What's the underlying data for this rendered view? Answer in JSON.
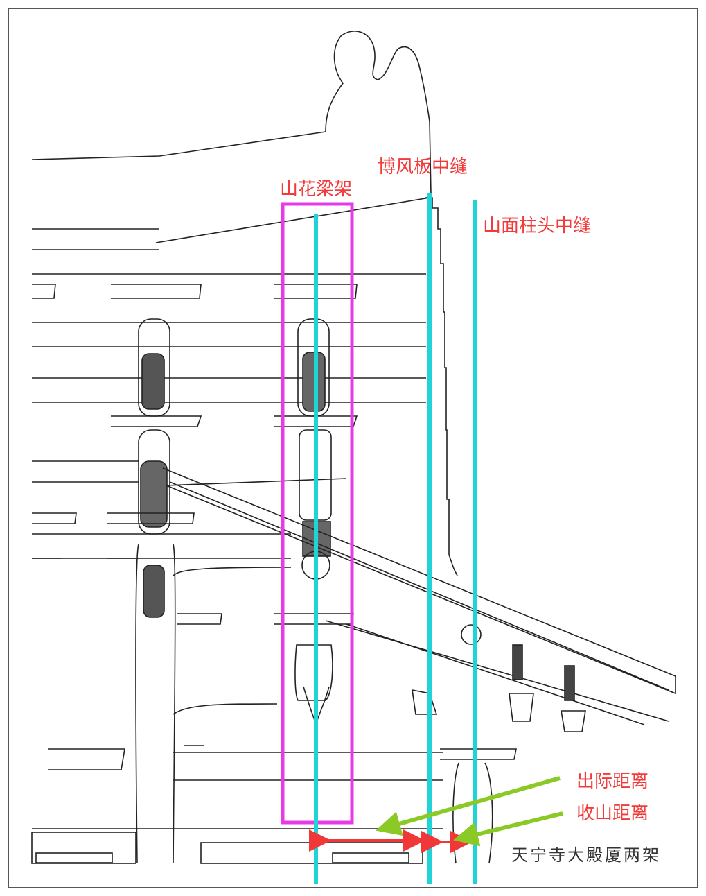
{
  "labels": {
    "shanhua_frame": "山花梁架",
    "bofeng_seam": "博风板中缝",
    "shanmian_seam": "山面柱头中缝",
    "chuji": "出际距离",
    "shoushan": "收山距离"
  },
  "caption": "天宁寺大殿厦两架",
  "colors": {
    "highlight_box": "#e83be8",
    "guide_lines": "#1fd3d8",
    "dimension_arrows": "#f03838",
    "pointer_arrows": "#8ac926",
    "label_text": "#f23a3a",
    "drawing_ink": "#222222"
  }
}
